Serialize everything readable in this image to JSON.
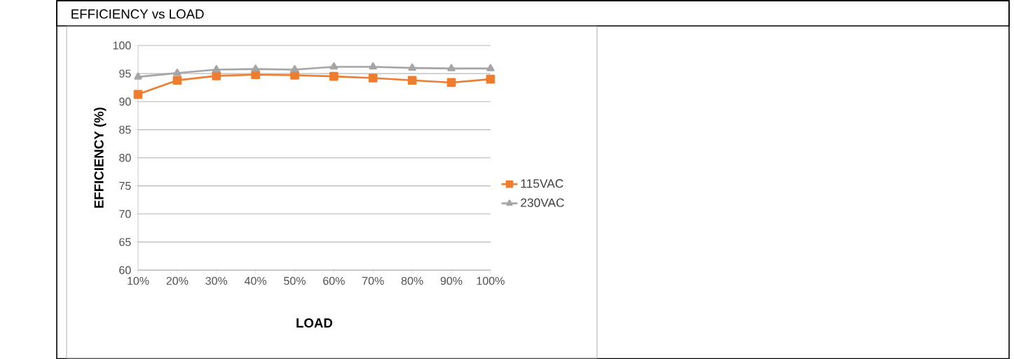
{
  "chart_data": {
    "type": "line",
    "title": "EFFICIENCY vs LOAD",
    "xlabel": "LOAD",
    "ylabel": "EFFICIENCY (%)",
    "categories": [
      "10%",
      "20%",
      "30%",
      "40%",
      "50%",
      "60%",
      "70%",
      "80%",
      "90%",
      "100%"
    ],
    "series": [
      {
        "name": "115VAC",
        "color": "#ed7d31",
        "marker": "square",
        "values": [
          91.3,
          93.8,
          94.6,
          94.8,
          94.7,
          94.5,
          94.2,
          93.8,
          93.4,
          94.0
        ]
      },
      {
        "name": "230VAC",
        "color": "#a5a5a5",
        "marker": "triangle",
        "values": [
          94.4,
          95.1,
          95.7,
          95.8,
          95.7,
          96.2,
          96.2,
          96.0,
          95.9,
          95.9
        ]
      }
    ],
    "ylim": [
      60,
      100
    ],
    "yticks": [
      60,
      65,
      70,
      75,
      80,
      85,
      90,
      95,
      100
    ],
    "grid": "y",
    "legend": "right"
  }
}
